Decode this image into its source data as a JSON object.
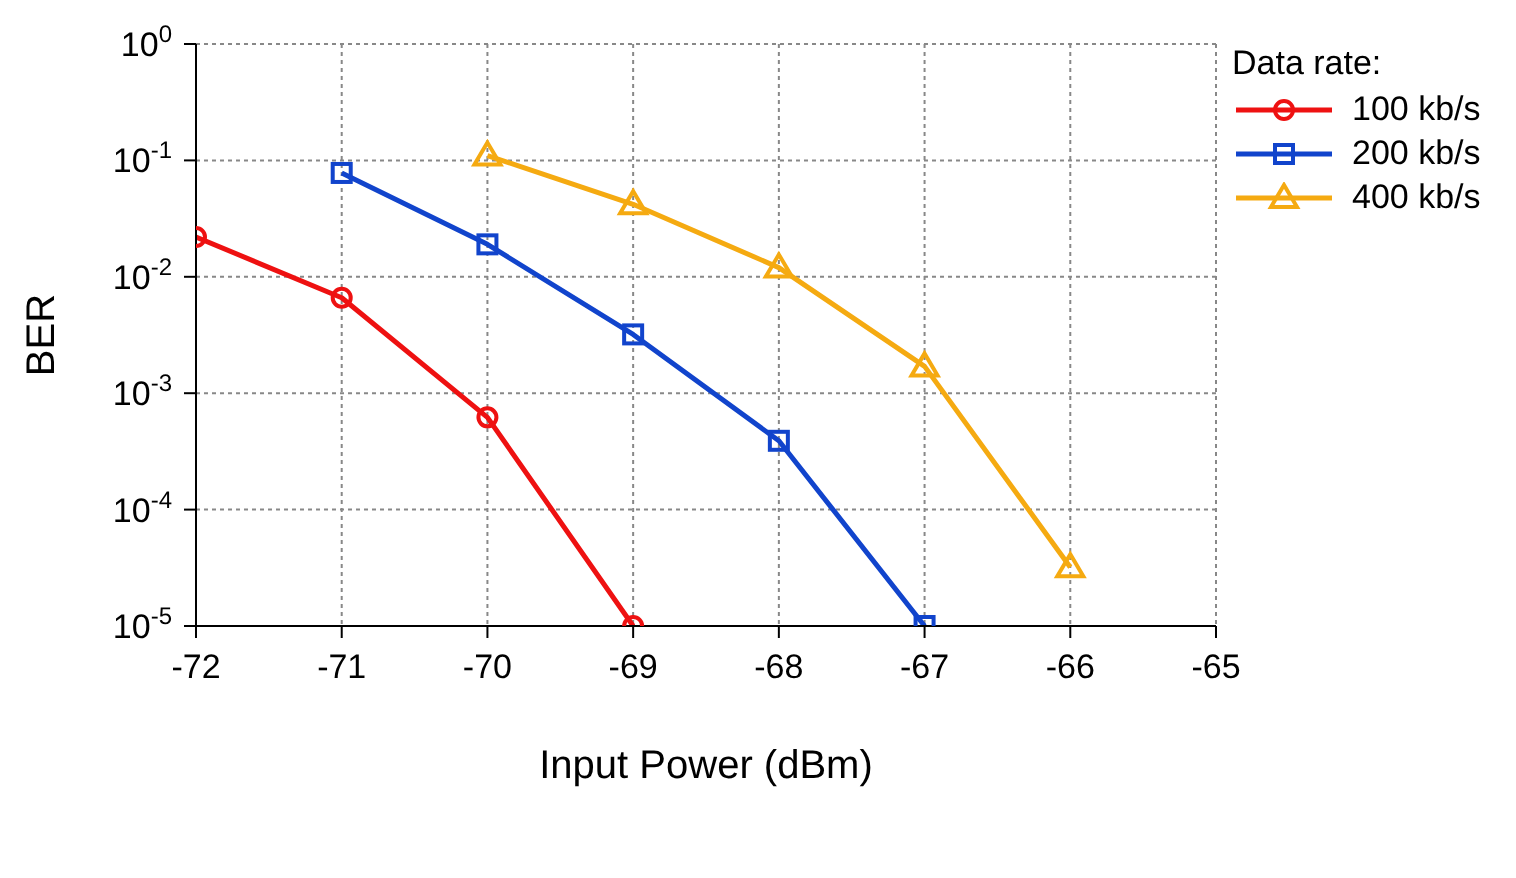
{
  "chart_data": {
    "type": "line",
    "xlabel": "Input Power (dBm)",
    "ylabel": "BER",
    "legend_title": "Data rate:",
    "legend": "top right",
    "log": "y",
    "grid": true,
    "line_style": "solid",
    "x": [
      -72,
      -71,
      -70,
      -69,
      -68,
      -67,
      -66
    ],
    "xlim": [
      -72,
      -65
    ],
    "xticks": [
      -72,
      -71,
      -70,
      -69,
      -68,
      -67,
      -66,
      -65
    ],
    "ylim": [
      1e-05,
      1
    ],
    "yticks": [
      {
        "value": 1e-05,
        "label": "10$^{-5}$"
      },
      {
        "value": 0.0001,
        "label": "10$^{-4}$"
      },
      {
        "value": 0.001,
        "label": "10$^{-3}$"
      },
      {
        "value": 0.01,
        "label": "10$^{-2}$"
      },
      {
        "value": 0.1,
        "label": "10$^{-1}$"
      },
      {
        "value": 1,
        "label": "10$^{0}$"
      }
    ],
    "series": [
      {
        "name": "100 kb/s",
        "color": "#ee1111",
        "marker": "circle",
        "values": [
          0.022,
          0.0066,
          0.00062,
          1e-05,
          null,
          null,
          null
        ]
      },
      {
        "name": "200 kb/s",
        "color": "#1144cc",
        "marker": "square",
        "values": [
          null,
          0.078,
          0.019,
          0.0032,
          0.00039,
          1e-05,
          null
        ]
      },
      {
        "name": "400 kb/s",
        "color": "#f5aa11",
        "marker": "triangle",
        "values": [
          null,
          null,
          0.11,
          0.042,
          0.012,
          0.0017,
          3.2e-05
        ]
      }
    ]
  }
}
